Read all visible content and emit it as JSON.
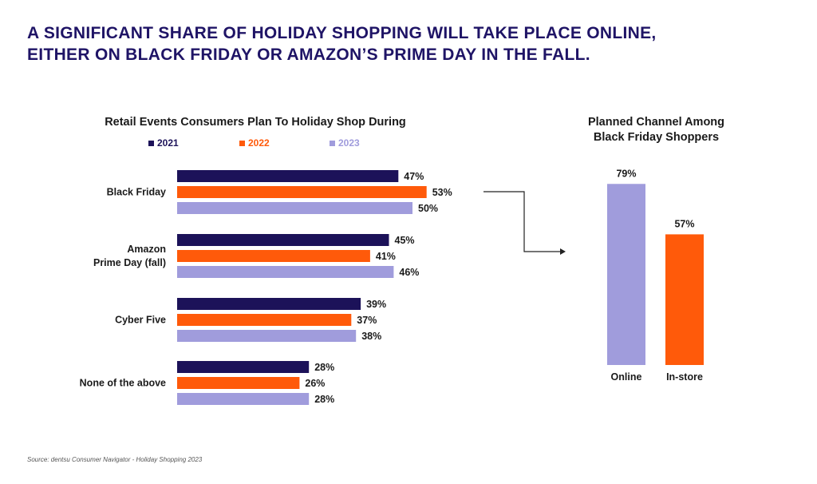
{
  "headline": {
    "line1": "A SIGNIFICANT SHARE OF HOLIDAY SHOPPING WILL TAKE PLACE ONLINE,",
    "line2": "EITHER ON BLACK FRIDAY OR AMAZON’S PRIME DAY IN THE FALL."
  },
  "colors": {
    "2021": "#1c1259",
    "2022": "#ff5a0a",
    "2023": "#a09cdc",
    "headline": "#1f1466"
  },
  "source": "Source: dentsu Consumer Navigator - Holiday Shopping 2023",
  "chart_data": [
    {
      "type": "bar",
      "orientation": "horizontal",
      "title": "Retail Events Consumers Plan To Holiday Shop During",
      "categories": [
        [
          "Black Friday"
        ],
        [
          "Amazon",
          "Prime Day (fall)"
        ],
        [
          "Cyber Five"
        ],
        [
          "None of the above"
        ]
      ],
      "series": [
        {
          "name": "2021",
          "values": [
            47,
            45,
            39,
            28
          ],
          "labels": [
            "47%",
            "45%",
            "39%",
            "28%"
          ],
          "color": "#1c1259"
        },
        {
          "name": "2022",
          "values": [
            53,
            41,
            37,
            26
          ],
          "labels": [
            "53%",
            "41%",
            "37%",
            "26%"
          ],
          "color": "#ff5a0a"
        },
        {
          "name": "2023",
          "values": [
            50,
            46,
            38,
            28
          ],
          "labels": [
            "50%",
            "46%",
            "38%",
            "28%"
          ],
          "color": "#a09cdc"
        }
      ],
      "legend": "top",
      "grid": false
    },
    {
      "type": "bar",
      "orientation": "vertical",
      "title": [
        "Planned Channel Among",
        "Black Friday Shoppers"
      ],
      "categories": [
        "Online",
        "In-store"
      ],
      "values": [
        79,
        57
      ],
      "labels": [
        "79%",
        "57%"
      ],
      "colors": [
        "#a09cdc",
        "#ff5a0a"
      ],
      "grid": false
    }
  ]
}
